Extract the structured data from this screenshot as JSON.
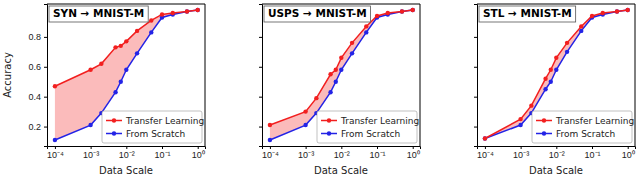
{
  "chart_data": [
    {
      "type": "line",
      "title": "SYN → MNIST-M",
      "x_label": "Data Scale",
      "y_label": "Accuracy",
      "log": "x",
      "legend": "lower right",
      "marker": "circle",
      "grid": false,
      "x": [
        0.0001,
        0.001,
        0.002,
        0.005,
        0.007,
        0.01,
        0.02,
        0.05,
        0.1,
        0.2,
        0.5,
        1
      ],
      "series": [
        {
          "name": "Transfer Learning",
          "color": "#f21f1f",
          "values": [
            0.47,
            0.58,
            0.62,
            0.73,
            0.74,
            0.77,
            0.84,
            0.91,
            0.95,
            0.96,
            0.97,
            0.98
          ]
        },
        {
          "name": "From Scratch",
          "color": "#2323e6",
          "values": [
            0.11,
            0.21,
            0.29,
            0.43,
            0.5,
            0.58,
            0.69,
            0.83,
            0.93,
            0.95,
            0.97,
            0.98
          ]
        }
      ],
      "xlim": [
        6e-05,
        1.6
      ],
      "ylim": [
        0.07,
        1.02
      ],
      "xticks": [
        {
          "value": 0.0001,
          "label": "10⁻⁴"
        },
        {
          "value": 0.001,
          "label": "10⁻³"
        },
        {
          "value": 0.01,
          "label": "10⁻²"
        },
        {
          "value": 0.1,
          "label": "10⁻¹"
        },
        {
          "value": 1,
          "label": "10⁰"
        }
      ],
      "yticks": [
        0.2,
        0.4,
        0.6,
        0.8
      ]
    },
    {
      "type": "line",
      "title": "USPS → MNIST-M",
      "x_label": "Data Scale",
      "log": "x",
      "legend": "lower right",
      "marker": "circle",
      "grid": false,
      "tick_labels": "x",
      "x": [
        0.0001,
        0.001,
        0.002,
        0.005,
        0.007,
        0.01,
        0.02,
        0.05,
        0.1,
        0.2,
        0.5,
        1
      ],
      "series": [
        {
          "name": "Transfer Learning",
          "color": "#f21f1f",
          "values": [
            0.21,
            0.3,
            0.39,
            0.55,
            0.58,
            0.66,
            0.76,
            0.87,
            0.94,
            0.96,
            0.97,
            0.98
          ]
        },
        {
          "name": "From Scratch",
          "color": "#2323e6",
          "values": [
            0.11,
            0.21,
            0.29,
            0.43,
            0.5,
            0.58,
            0.69,
            0.83,
            0.93,
            0.95,
            0.97,
            0.98
          ]
        }
      ],
      "xlim": [
        6e-05,
        1.6
      ],
      "ylim": [
        0.07,
        1.02
      ],
      "xticks": [
        {
          "value": 0.0001,
          "label": "10⁻⁴"
        },
        {
          "value": 0.001,
          "label": "10⁻³"
        },
        {
          "value": 0.01,
          "label": "10⁻²"
        },
        {
          "value": 0.1,
          "label": "10⁻¹"
        },
        {
          "value": 1,
          "label": "10⁰"
        }
      ],
      "yticks": [
        0.2,
        0.4,
        0.6,
        0.8
      ]
    },
    {
      "type": "line",
      "title": "STL → MNIST-M",
      "x_label": "Data Scale",
      "log": "x",
      "legend": "lower right",
      "marker": "circle",
      "grid": false,
      "tick_labels": "x",
      "x": [
        0.0001,
        0.001,
        0.002,
        0.005,
        0.007,
        0.01,
        0.02,
        0.05,
        0.1,
        0.2,
        0.5,
        1
      ],
      "series": [
        {
          "name": "Transfer Learning",
          "color": "#f21f1f",
          "values": [
            0.12,
            0.25,
            0.34,
            0.52,
            0.58,
            0.66,
            0.76,
            0.87,
            0.94,
            0.96,
            0.97,
            0.98
          ]
        },
        {
          "name": "From Scratch",
          "color": "#2323e6",
          "values": [
            0.12,
            0.21,
            0.29,
            0.45,
            0.5,
            0.58,
            0.7,
            0.84,
            0.93,
            0.95,
            0.97,
            0.98
          ]
        }
      ],
      "xlim": [
        6e-05,
        1.6
      ],
      "ylim": [
        0.07,
        1.02
      ],
      "xticks": [
        {
          "value": 0.0001,
          "label": "10⁻⁴"
        },
        {
          "value": 0.001,
          "label": "10⁻³"
        },
        {
          "value": 0.01,
          "label": "10⁻²"
        },
        {
          "value": 0.1,
          "label": "10⁻¹"
        },
        {
          "value": 1,
          "label": "10⁰"
        }
      ],
      "yticks": [
        0.2,
        0.4,
        0.6,
        0.8
      ]
    }
  ]
}
